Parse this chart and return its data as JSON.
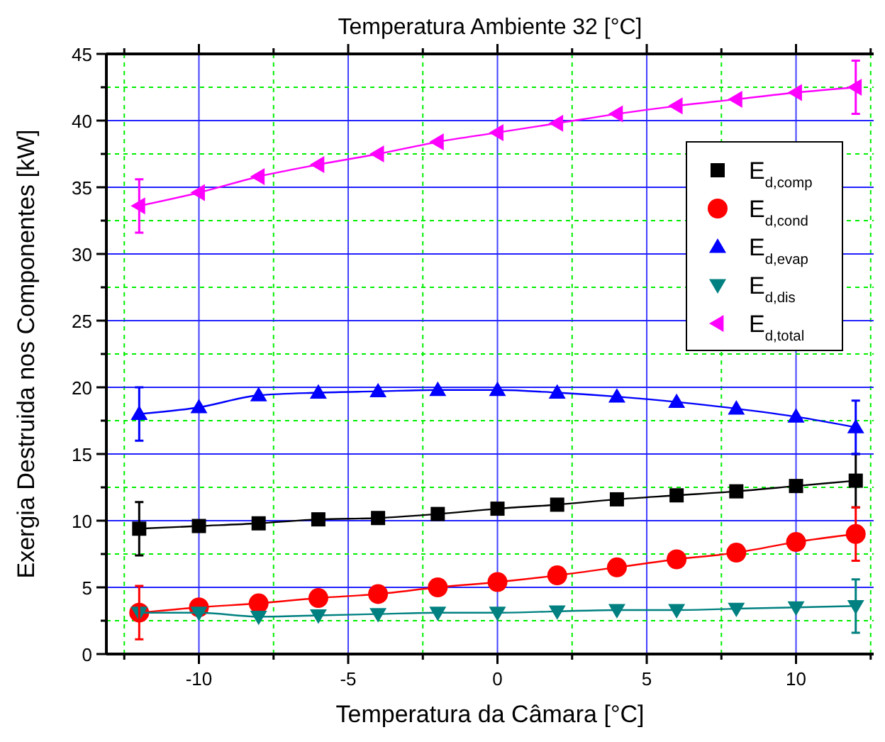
{
  "chart_data": {
    "type": "line",
    "title": "Temperatura Ambiente 32 [°C]",
    "xlabel": "Temperatura da Câmara [°C]",
    "ylabel": "Exergia Destruida nos Componentes [kW]",
    "x": [
      -12,
      -10,
      -8,
      -6,
      -4,
      -2,
      0,
      2,
      4,
      6,
      8,
      10,
      12
    ],
    "xlim": [
      -13.1,
      12.6
    ],
    "xticks": [
      {
        "value": -12.5,
        "label": null
      },
      -10,
      {
        "value": -7.5,
        "label": null
      },
      -5,
      {
        "value": -2.5,
        "label": null
      },
      0,
      {
        "value": 2.5,
        "label": null
      },
      5,
      {
        "value": 7.5,
        "label": null
      },
      10,
      {
        "value": 12.5,
        "label": null
      }
    ],
    "ylim": [
      0,
      45
    ],
    "yticks": [
      0,
      {
        "value": 2.5,
        "label": null
      },
      5,
      {
        "value": 7.5,
        "label": null
      },
      10,
      {
        "value": 12.5,
        "label": null
      },
      15,
      {
        "value": 17.5,
        "label": null
      },
      20,
      {
        "value": 22.5,
        "label": null
      },
      25,
      {
        "value": 27.5,
        "label": null
      },
      30,
      {
        "value": 32.5,
        "label": null
      },
      35,
      {
        "value": 37.5,
        "label": null
      },
      40,
      {
        "value": 42.5,
        "label": null
      },
      45
    ],
    "grid": true,
    "legend": "top right",
    "line_style": "solid",
    "series": [
      {
        "name": "E$_{d,comp}$",
        "color": "#000000",
        "marker": "square",
        "values": [
          9.4,
          9.6,
          9.8,
          10.1,
          10.2,
          10.5,
          10.9,
          11.2,
          11.6,
          11.9,
          12.2,
          12.6,
          13.0
        ],
        "errors": [
          2,
          null,
          null,
          null,
          null,
          null,
          null,
          null,
          null,
          null,
          null,
          null,
          2
        ]
      },
      {
        "name": "E$_{d,cond}$",
        "color": "#ff0000",
        "marker": "circle",
        "values": [
          3.1,
          3.5,
          3.8,
          4.2,
          4.5,
          5.0,
          5.4,
          5.9,
          6.5,
          7.1,
          7.6,
          8.4,
          9.0
        ],
        "errors": [
          2,
          null,
          null,
          null,
          null,
          null,
          null,
          null,
          null,
          null,
          null,
          null,
          2
        ]
      },
      {
        "name": "E$_{d,evap}$",
        "color": "#0000ff",
        "marker": "triangle",
        "values": [
          18.0,
          18.5,
          19.4,
          19.6,
          19.7,
          19.8,
          19.8,
          19.6,
          19.3,
          18.9,
          18.4,
          17.8,
          17.0
        ],
        "errors": [
          2,
          null,
          null,
          null,
          null,
          null,
          null,
          null,
          null,
          null,
          null,
          null,
          2
        ]
      },
      {
        "name": "E$_{d,dis}$",
        "color": "#008080",
        "marker": "triangle-down",
        "values": [
          3.1,
          3.1,
          2.8,
          2.9,
          3.0,
          3.1,
          3.1,
          3.2,
          3.3,
          3.3,
          3.4,
          3.5,
          3.6
        ],
        "errors": [
          null,
          null,
          null,
          null,
          null,
          null,
          null,
          null,
          null,
          null,
          null,
          null,
          2
        ]
      },
      {
        "name": "E$_{d,total}$",
        "color": "#ff00ff",
        "marker": "triangle-left",
        "values": [
          33.6,
          34.6,
          35.8,
          36.7,
          37.5,
          38.4,
          39.1,
          39.8,
          40.5,
          41.1,
          41.6,
          42.1,
          42.5
        ],
        "errors": [
          2,
          null,
          null,
          null,
          null,
          null,
          null,
          null,
          null,
          null,
          null,
          null,
          2
        ]
      }
    ]
  }
}
